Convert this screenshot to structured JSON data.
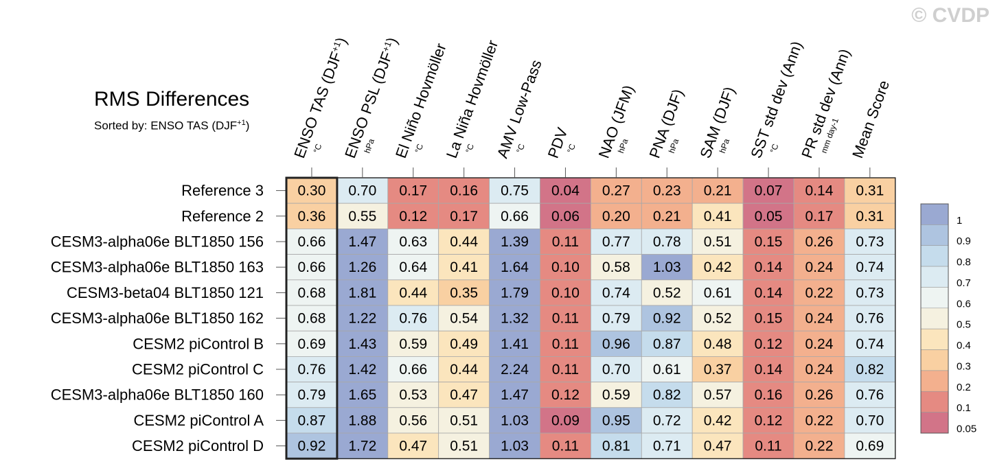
{
  "watermark": "© CVDP",
  "chart_data": {
    "type": "heatmap",
    "title": "RMS Differences",
    "subtitle_prefix": "Sorted by: ",
    "sorted_by": {
      "base": "ENSO TAS (DJF",
      "sup": "+1",
      "tail": ")"
    },
    "columns": [
      {
        "label": "ENSO TAS (DJF",
        "sup": "+1",
        "tail": ")",
        "unit": "°C"
      },
      {
        "label": "ENSO PSL (DJF",
        "sup": "+1",
        "tail": ")",
        "unit": "hPa"
      },
      {
        "label": "El Niño Hovmöller",
        "sup": "",
        "tail": "",
        "unit": "°C"
      },
      {
        "label": "La Niña Hovmöller",
        "sup": "",
        "tail": "",
        "unit": "°C"
      },
      {
        "label": "AMV Low-Pass",
        "sup": "",
        "tail": "",
        "unit": "°C"
      },
      {
        "label": "PDV",
        "sup": "",
        "tail": "",
        "unit": "°C"
      },
      {
        "label": "NAO (JFM)",
        "sup": "",
        "tail": "",
        "unit": "hPa"
      },
      {
        "label": "PNA (DJF)",
        "sup": "",
        "tail": "",
        "unit": "hPa"
      },
      {
        "label": "SAM (DJF)",
        "sup": "",
        "tail": "",
        "unit": "hPa"
      },
      {
        "label": "SST std dev (Ann)",
        "sup": "",
        "tail": "",
        "unit": "°C"
      },
      {
        "label": "PR std dev (Ann)",
        "sup": "",
        "tail": "",
        "unit": "mm day-1"
      },
      {
        "label": "Mean Score",
        "sup": "",
        "tail": "",
        "unit": ""
      }
    ],
    "rows": [
      "Reference 3",
      "Reference 2",
      "CESM3-alpha06e BLT1850 156",
      "CESM3-alpha06e BLT1850 163",
      "CESM3-beta04 BLT1850 121",
      "CESM3-alpha06e BLT1850 162",
      "CESM2 piControl B",
      "CESM2 piControl C",
      "CESM3-alpha06e BLT1850 160",
      "CESM2 piControl A",
      "CESM2 piControl D"
    ],
    "values": [
      [
        "0.30",
        "0.70",
        "0.17",
        "0.16",
        "0.75",
        "0.04",
        "0.27",
        "0.23",
        "0.21",
        "0.07",
        "0.14",
        "0.31"
      ],
      [
        "0.36",
        "0.55",
        "0.12",
        "0.17",
        "0.66",
        "0.06",
        "0.20",
        "0.21",
        "0.41",
        "0.05",
        "0.17",
        "0.31"
      ],
      [
        "0.66",
        "1.47",
        "0.63",
        "0.44",
        "1.39",
        "0.11",
        "0.77",
        "0.78",
        "0.51",
        "0.15",
        "0.26",
        "0.73"
      ],
      [
        "0.66",
        "1.26",
        "0.64",
        "0.41",
        "1.64",
        "0.10",
        "0.58",
        "1.03",
        "0.42",
        "0.14",
        "0.24",
        "0.74"
      ],
      [
        "0.68",
        "1.81",
        "0.44",
        "0.35",
        "1.79",
        "0.10",
        "0.74",
        "0.52",
        "0.61",
        "0.14",
        "0.22",
        "0.73"
      ],
      [
        "0.68",
        "1.22",
        "0.76",
        "0.54",
        "1.32",
        "0.11",
        "0.79",
        "0.92",
        "0.52",
        "0.15",
        "0.24",
        "0.76"
      ],
      [
        "0.69",
        "1.43",
        "0.59",
        "0.49",
        "1.41",
        "0.11",
        "0.96",
        "0.87",
        "0.48",
        "0.12",
        "0.24",
        "0.74"
      ],
      [
        "0.76",
        "1.42",
        "0.66",
        "0.44",
        "2.24",
        "0.11",
        "0.70",
        "0.61",
        "0.37",
        "0.14",
        "0.24",
        "0.82"
      ],
      [
        "0.79",
        "1.65",
        "0.53",
        "0.47",
        "1.47",
        "0.12",
        "0.59",
        "0.82",
        "0.57",
        "0.16",
        "0.26",
        "0.76"
      ],
      [
        "0.87",
        "1.88",
        "0.56",
        "0.51",
        "1.03",
        "0.09",
        "0.95",
        "0.72",
        "0.42",
        "0.12",
        "0.22",
        "0.70"
      ],
      [
        "0.92",
        "1.72",
        "0.47",
        "0.51",
        "1.03",
        "0.11",
        "0.81",
        "0.71",
        "0.47",
        "0.11",
        "0.22",
        "0.69"
      ]
    ],
    "highlight_column": 0,
    "colorbar": {
      "labels": [
        "1",
        "0.9",
        "0.8",
        "0.7",
        "0.6",
        "0.5",
        "0.4",
        "0.3",
        "0.2",
        "0.1",
        "0.05"
      ],
      "colors": [
        "#9aa9d2",
        "#aec4e0",
        "#c5dcec",
        "#dcebf2",
        "#eef4f2",
        "#f5f1e0",
        "#fbe5bd",
        "#f9d0a2",
        "#f3b08e",
        "#e58a82",
        "#d27488"
      ]
    }
  }
}
